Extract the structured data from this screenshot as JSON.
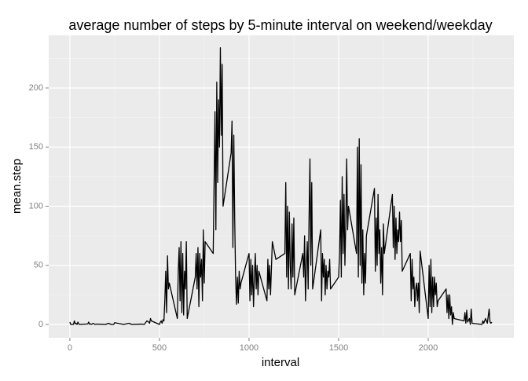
{
  "chart_data": {
    "type": "line",
    "title": "average number of steps by 5-minute interval on weekend/weekday",
    "xlabel": "interval",
    "ylabel": "mean.step",
    "x": [
      0,
      5,
      10,
      15,
      20,
      25,
      30,
      35,
      40,
      45,
      50,
      55,
      100,
      105,
      110,
      115,
      120,
      130,
      140,
      150,
      200,
      215,
      230,
      245,
      250,
      300,
      330,
      345,
      400,
      415,
      430,
      440,
      445,
      450,
      455,
      500,
      505,
      510,
      515,
      520,
      525,
      530,
      535,
      540,
      545,
      550,
      555,
      600,
      605,
      610,
      615,
      620,
      625,
      630,
      635,
      640,
      645,
      650,
      655,
      700,
      705,
      710,
      715,
      720,
      725,
      730,
      735,
      740,
      745,
      750,
      755,
      800,
      805,
      810,
      815,
      820,
      825,
      830,
      835,
      840,
      845,
      850,
      855,
      900,
      905,
      910,
      915,
      920,
      925,
      930,
      935,
      940,
      945,
      950,
      955,
      1000,
      1005,
      1010,
      1015,
      1020,
      1025,
      1030,
      1035,
      1040,
      1045,
      1050,
      1055,
      1100,
      1105,
      1110,
      1115,
      1120,
      1130,
      1150,
      1200,
      1205,
      1210,
      1215,
      1220,
      1225,
      1230,
      1235,
      1240,
      1245,
      1250,
      1255,
      1300,
      1305,
      1310,
      1315,
      1320,
      1325,
      1330,
      1335,
      1340,
      1345,
      1350,
      1355,
      1400,
      1405,
      1410,
      1415,
      1420,
      1425,
      1430,
      1435,
      1440,
      1445,
      1450,
      1455,
      1500,
      1505,
      1510,
      1515,
      1520,
      1525,
      1530,
      1535,
      1540,
      1545,
      1550,
      1555,
      1600,
      1605,
      1610,
      1615,
      1620,
      1625,
      1630,
      1635,
      1640,
      1645,
      1650,
      1655,
      1700,
      1705,
      1710,
      1715,
      1720,
      1725,
      1730,
      1735,
      1740,
      1745,
      1750,
      1755,
      1800,
      1805,
      1810,
      1815,
      1820,
      1825,
      1830,
      1835,
      1840,
      1845,
      1850,
      1855,
      1900,
      1905,
      1910,
      1915,
      1920,
      1925,
      1930,
      1935,
      1940,
      1945,
      1950,
      1955,
      2000,
      2005,
      2010,
      2015,
      2020,
      2025,
      2030,
      2035,
      2040,
      2045,
      2050,
      2055,
      2100,
      2105,
      2110,
      2115,
      2120,
      2125,
      2130,
      2135,
      2140,
      2145,
      2200,
      2205,
      2210,
      2215,
      2220,
      2230,
      2235,
      2240,
      2245,
      2300,
      2305,
      2310,
      2320,
      2330,
      2340,
      2345,
      2350,
      2355
    ],
    "values": [
      2,
      0,
      0,
      0,
      0,
      3,
      0.5,
      1,
      0,
      2,
      0.4,
      0,
      0.4,
      2,
      0.2,
      0.5,
      0,
      1,
      0,
      0.3,
      0,
      1,
      0,
      0,
      1.5,
      0,
      1,
      0,
      0.3,
      0,
      3,
      2,
      1,
      5,
      3,
      0,
      2,
      3,
      1,
      4,
      3,
      20,
      45,
      10,
      58,
      30,
      35,
      5,
      45,
      65,
      20,
      70,
      10,
      60,
      8,
      45,
      30,
      70,
      5,
      40,
      60,
      30,
      65,
      15,
      60,
      40,
      55,
      20,
      80,
      35,
      70,
      60,
      120,
      180,
      80,
      205,
      120,
      190,
      150,
      234,
      160,
      220,
      100,
      145,
      172,
      65,
      160,
      90,
      40,
      17,
      40,
      18,
      45,
      30,
      35,
      60,
      20,
      55,
      25,
      50,
      15,
      40,
      60,
      30,
      50,
      25,
      45,
      20,
      55,
      30,
      50,
      25,
      70,
      55,
      60,
      120,
      40,
      100,
      30,
      95,
      50,
      30,
      85,
      40,
      90,
      25,
      60,
      40,
      75,
      20,
      50,
      70,
      30,
      90,
      140,
      50,
      120,
      30,
      80,
      20,
      60,
      40,
      55,
      25,
      50,
      30,
      45,
      40,
      55,
      30,
      40,
      60,
      105,
      40,
      125,
      60,
      110,
      50,
      85,
      140,
      80,
      100,
      60,
      150,
      40,
      157,
      50,
      135,
      35,
      80,
      25,
      60,
      35,
      75,
      115,
      45,
      90,
      50,
      110,
      60,
      80,
      35,
      65,
      25,
      85,
      60,
      110,
      65,
      100,
      55,
      90,
      60,
      80,
      70,
      95,
      70,
      88,
      45,
      60,
      20,
      55,
      30,
      40,
      15,
      30,
      35,
      20,
      35,
      10,
      62,
      5,
      50,
      15,
      55,
      10,
      40,
      15,
      40,
      25,
      35,
      15,
      20,
      30,
      10,
      25,
      5,
      25,
      8,
      15,
      0,
      10,
      5,
      3,
      10,
      1,
      12,
      2,
      5,
      0,
      13,
      1,
      0,
      3,
      1,
      5,
      1,
      13,
      2,
      1,
      2
    ],
    "color": "#000000",
    "xlim": [
      -118,
      2478
    ],
    "ylim": [
      -11.3,
      244.5
    ],
    "xticks": [
      0,
      500,
      1000,
      1500,
      2000
    ],
    "yticks": [
      0,
      50,
      100,
      150,
      200
    ],
    "xminor": [
      250,
      750,
      1250,
      1750,
      2250
    ],
    "yminor": [
      25,
      75,
      125,
      175,
      225
    ],
    "grid": true
  }
}
